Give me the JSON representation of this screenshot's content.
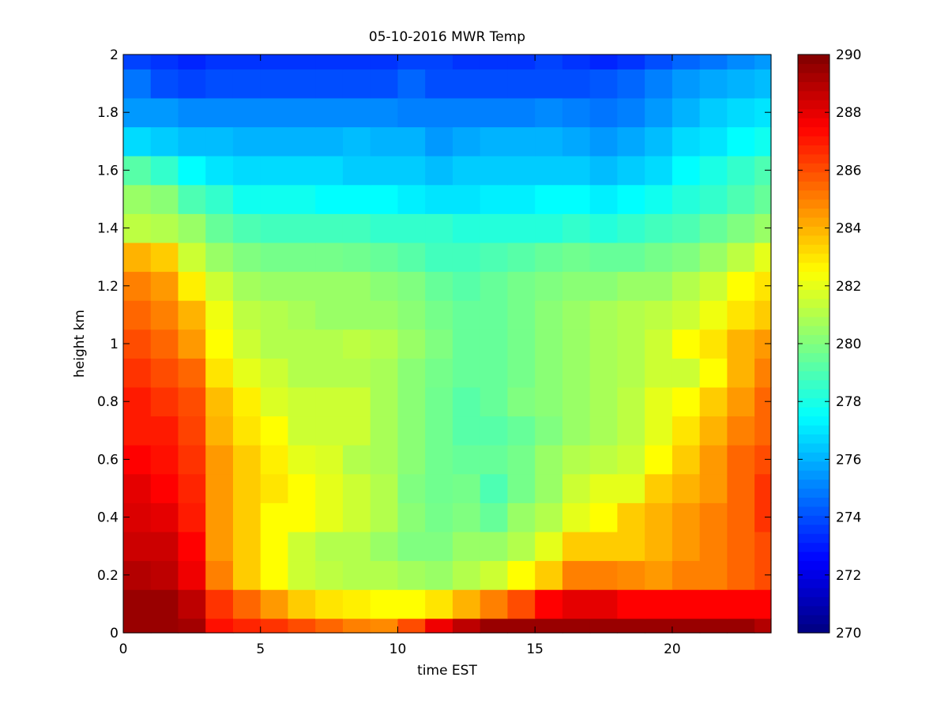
{
  "chart_data": {
    "type": "heatmap",
    "title": "05-10-2016 MWR Temp",
    "xlabel": "time EST",
    "ylabel": "height km",
    "xlim": [
      0,
      23.6
    ],
    "ylim": [
      0,
      2
    ],
    "xticks": [
      0,
      5,
      10,
      15,
      20
    ],
    "yticks": [
      0,
      0.2,
      0.4,
      0.6,
      0.8,
      1,
      1.2,
      1.4,
      1.6,
      1.8,
      2
    ],
    "ytick_labels": [
      "0",
      "0.2",
      "0.4",
      "0.6",
      "0.8",
      "1",
      "1.2",
      "1.4",
      "1.6",
      "1.8",
      "2"
    ],
    "colorbar": {
      "range": [
        270,
        290
      ],
      "ticks": [
        270,
        272,
        274,
        276,
        278,
        280,
        282,
        284,
        286,
        288,
        290
      ],
      "colormap": "jet"
    },
    "x": [
      0.5,
      1.5,
      2.5,
      3.5,
      4.5,
      5.5,
      6.5,
      7.5,
      8.5,
      9.5,
      10.5,
      11.5,
      12.5,
      13.5,
      14.5,
      15.5,
      16.5,
      17.5,
      18.5,
      19.5,
      20.5,
      21.5,
      22.5,
      23.5
    ],
    "y_edges": [
      0,
      0.05,
      0.15,
      0.25,
      0.35,
      0.45,
      0.55,
      0.65,
      0.75,
      0.85,
      0.95,
      1.05,
      1.15,
      1.25,
      1.35,
      1.45,
      1.55,
      1.65,
      1.75,
      1.85,
      1.95,
      2.0
    ],
    "z": [
      [
        289.5,
        289.5,
        289.3,
        287.2,
        286.8,
        286.5,
        286.0,
        285.5,
        285.0,
        284.8,
        286.0,
        287.8,
        288.8,
        289.5,
        289.5,
        289.5,
        289.5,
        289.5,
        289.5,
        289.5,
        289.5,
        289.5,
        289.5,
        289.0
      ],
      [
        289.5,
        289.5,
        288.8,
        286.5,
        285.5,
        284.5,
        283.5,
        283.0,
        282.8,
        282.5,
        282.5,
        283.0,
        284.0,
        285.0,
        286.0,
        287.5,
        288.0,
        288.0,
        287.5,
        287.5,
        287.5,
        287.5,
        287.5,
        287.5
      ],
      [
        289.0,
        288.8,
        287.8,
        285.0,
        283.5,
        282.5,
        281.5,
        281.2,
        281.0,
        281.0,
        280.7,
        280.5,
        281.0,
        281.5,
        282.5,
        283.5,
        285.0,
        285.0,
        284.8,
        284.5,
        285.0,
        285.0,
        285.5,
        286.0
      ],
      [
        288.5,
        288.5,
        287.5,
        284.5,
        283.5,
        282.5,
        281.5,
        281.0,
        281.0,
        280.5,
        280.0,
        280.0,
        280.5,
        280.5,
        281.0,
        282.0,
        283.5,
        283.5,
        283.5,
        284.0,
        284.5,
        285.0,
        285.5,
        286.0
      ],
      [
        288.2,
        288.0,
        287.0,
        284.5,
        283.5,
        282.5,
        282.5,
        282.0,
        281.5,
        281.0,
        280.2,
        279.8,
        280.0,
        279.5,
        280.5,
        281.0,
        282.0,
        282.5,
        283.5,
        284.0,
        284.5,
        285.0,
        285.5,
        286.5
      ],
      [
        288.0,
        287.5,
        286.8,
        284.5,
        283.5,
        283.0,
        282.5,
        282.0,
        281.5,
        281.0,
        280.0,
        279.7,
        279.8,
        279.0,
        279.8,
        280.5,
        281.5,
        282.0,
        282.0,
        283.5,
        284.0,
        284.5,
        285.5,
        286.5
      ],
      [
        287.5,
        287.2,
        286.5,
        284.5,
        283.5,
        282.8,
        282.0,
        281.8,
        281.0,
        280.8,
        280.2,
        279.7,
        279.5,
        279.5,
        279.8,
        280.5,
        281.0,
        281.2,
        281.5,
        282.5,
        283.5,
        284.5,
        285.5,
        286.0
      ],
      [
        287.0,
        287.0,
        286.2,
        284.0,
        283.0,
        282.5,
        281.5,
        281.5,
        281.5,
        280.8,
        280.2,
        279.7,
        279.2,
        279.2,
        279.5,
        280.0,
        280.5,
        280.8,
        281.2,
        282.0,
        283.0,
        284.0,
        285.0,
        285.5
      ],
      [
        287.0,
        286.5,
        286.0,
        283.8,
        282.8,
        281.8,
        281.5,
        281.5,
        281.5,
        280.8,
        280.2,
        279.7,
        279.2,
        279.5,
        280.0,
        280.2,
        280.5,
        280.8,
        281.2,
        282.0,
        282.5,
        283.5,
        284.5,
        285.5
      ],
      [
        286.5,
        286.0,
        285.5,
        283.0,
        282.0,
        281.5,
        281.0,
        281.0,
        281.0,
        280.8,
        280.2,
        279.8,
        279.5,
        279.5,
        279.8,
        280.2,
        280.5,
        280.8,
        281.0,
        281.5,
        281.5,
        282.5,
        284.0,
        285.0
      ],
      [
        286.0,
        285.5,
        284.5,
        282.5,
        281.5,
        281.0,
        281.0,
        281.0,
        281.2,
        281.0,
        280.5,
        280.0,
        279.5,
        279.5,
        279.8,
        280.2,
        280.5,
        280.8,
        281.0,
        281.5,
        282.5,
        283.0,
        284.0,
        284.5
      ],
      [
        285.5,
        285.0,
        284.0,
        282.2,
        281.2,
        281.0,
        280.8,
        280.5,
        280.5,
        280.5,
        280.2,
        279.8,
        279.5,
        279.5,
        279.8,
        280.2,
        280.5,
        280.8,
        281.0,
        281.2,
        281.5,
        282.2,
        283.0,
        283.5
      ],
      [
        285.0,
        284.5,
        282.8,
        281.5,
        280.7,
        280.5,
        280.5,
        280.5,
        280.5,
        280.2,
        280.0,
        279.5,
        279.2,
        279.5,
        279.8,
        280.0,
        280.2,
        280.2,
        280.5,
        280.5,
        281.0,
        281.5,
        282.5,
        283.0
      ],
      [
        284.0,
        283.5,
        281.5,
        280.5,
        280.0,
        279.8,
        279.8,
        279.8,
        279.7,
        279.5,
        279.2,
        278.8,
        278.8,
        279.0,
        279.2,
        279.5,
        279.7,
        279.5,
        279.5,
        279.8,
        280.0,
        280.5,
        281.2,
        282.0
      ],
      [
        281.2,
        281.0,
        280.5,
        279.5,
        279.0,
        278.8,
        278.8,
        278.8,
        278.8,
        278.5,
        278.5,
        278.5,
        278.2,
        278.2,
        278.2,
        278.2,
        278.5,
        278.2,
        278.5,
        278.8,
        279.0,
        279.5,
        280.0,
        280.5
      ],
      [
        280.5,
        280.2,
        279.0,
        278.5,
        277.8,
        277.8,
        277.8,
        277.5,
        277.5,
        277.5,
        277.2,
        277.0,
        277.0,
        277.2,
        277.2,
        277.5,
        277.5,
        277.2,
        277.5,
        277.8,
        278.2,
        278.5,
        279.0,
        279.5
      ],
      [
        279.2,
        278.5,
        277.5,
        277.0,
        276.8,
        276.8,
        276.8,
        276.8,
        276.5,
        276.5,
        276.5,
        276.2,
        276.5,
        276.5,
        276.5,
        276.5,
        276.5,
        276.2,
        276.5,
        276.8,
        277.5,
        278.0,
        278.5,
        279.0
      ],
      [
        276.8,
        276.5,
        276.2,
        276.2,
        276.0,
        276.0,
        276.0,
        276.0,
        276.2,
        276.0,
        276.0,
        275.5,
        275.8,
        276.0,
        276.0,
        276.0,
        275.8,
        275.5,
        275.8,
        276.2,
        276.8,
        277.0,
        277.5,
        277.8
      ],
      [
        275.5,
        275.5,
        275.2,
        275.2,
        275.2,
        275.2,
        275.2,
        275.2,
        275.2,
        275.2,
        275.0,
        275.0,
        275.0,
        275.0,
        275.0,
        275.2,
        275.0,
        274.8,
        275.0,
        275.5,
        276.0,
        276.5,
        276.8,
        277.0
      ],
      [
        274.8,
        274.0,
        273.8,
        274.0,
        274.0,
        274.0,
        274.0,
        274.0,
        274.0,
        274.0,
        274.5,
        274.0,
        274.0,
        274.0,
        274.0,
        274.0,
        274.0,
        274.2,
        274.5,
        275.0,
        275.5,
        275.8,
        276.0,
        276.2
      ],
      [
        273.8,
        273.5,
        273.2,
        273.5,
        273.5,
        273.5,
        273.5,
        273.5,
        273.5,
        273.5,
        273.8,
        273.8,
        273.5,
        273.5,
        273.5,
        273.8,
        273.5,
        273.2,
        273.5,
        274.0,
        274.5,
        274.8,
        275.2,
        275.5
      ]
    ]
  }
}
